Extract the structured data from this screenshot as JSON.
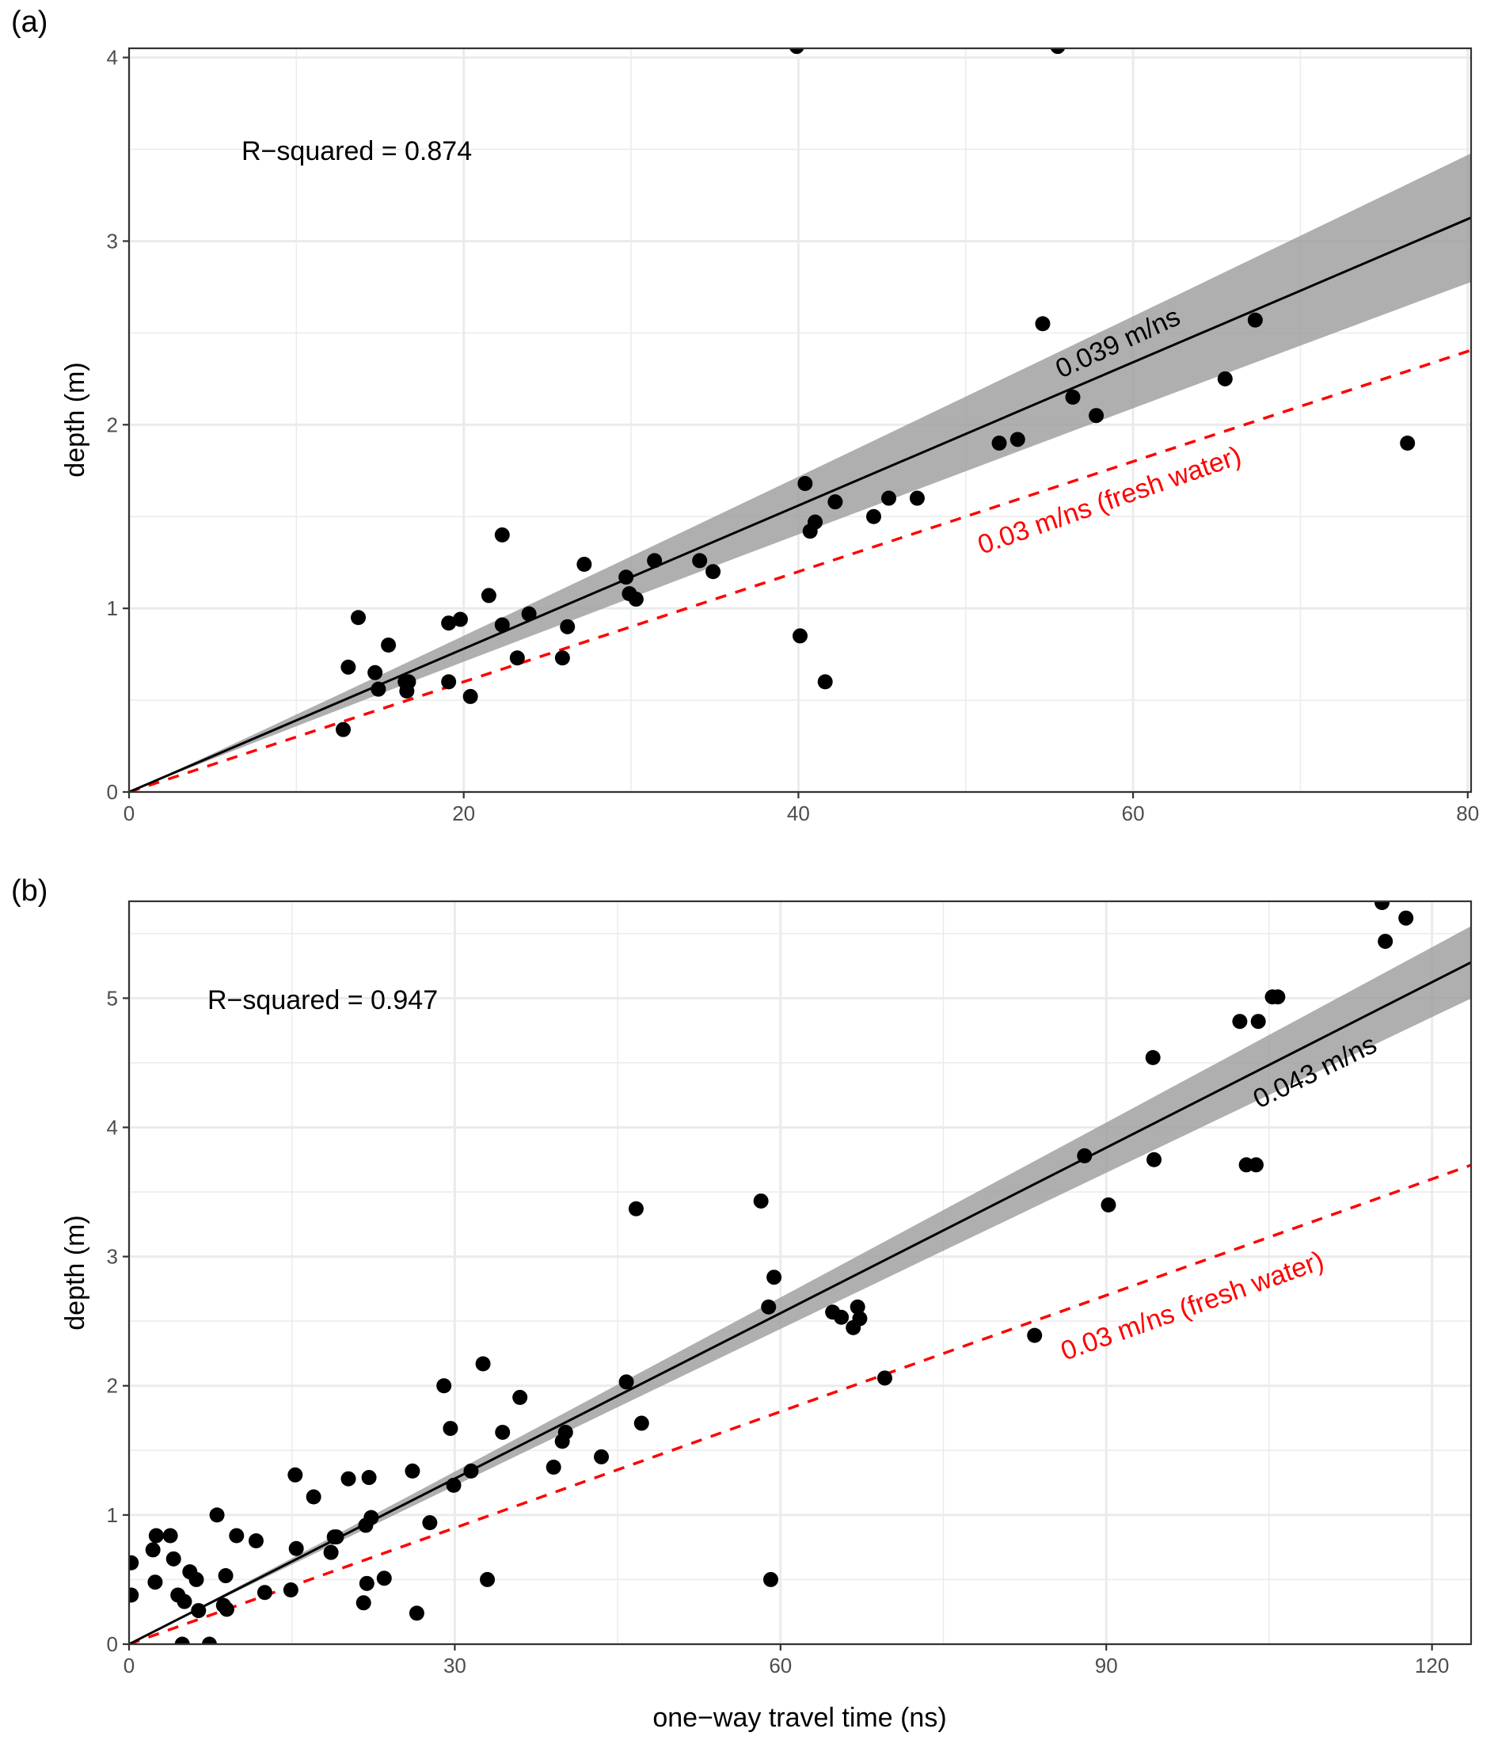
{
  "figure": {
    "panels": [
      "(a)",
      "(b)"
    ],
    "colors": {
      "points": "#000000",
      "fit_line": "#000000",
      "confidence_band": "#999999",
      "reference_line": "#ff0000",
      "grid": "#ebebeb",
      "tick_text": "#4d4d4d"
    }
  },
  "chart_data": [
    {
      "type": "scatter",
      "panel_label": "(a)",
      "title": "",
      "xlabel": "",
      "ylabel": "depth (m)",
      "xlim": [
        0,
        80.2
      ],
      "ylim": [
        0,
        4.05
      ],
      "xticks": [
        0,
        20,
        40,
        60,
        80
      ],
      "yticks": [
        0,
        1,
        2,
        3,
        4
      ],
      "xminor": [
        10,
        30,
        50,
        70
      ],
      "yminor": [
        0.5,
        1.5,
        2.5,
        3.5
      ],
      "grid": true,
      "annotations": {
        "r_squared": "R−squared = 0.874",
        "fit_label": "0.039 m/ns",
        "reference_label": "0.03 m/ns (fresh water)"
      },
      "fit": {
        "slope": 0.039,
        "intercept": 0,
        "band_half_width_at_xmax": 0.35
      },
      "reference": {
        "slope": 0.03,
        "intercept": 0,
        "style": "dashed"
      },
      "points": {
        "x": [
          12.8,
          13.1,
          13.7,
          14.7,
          14.9,
          15.5,
          16.5,
          16.7,
          16.6,
          19.1,
          19.1,
          19.8,
          20.4,
          21.5,
          22.3,
          22.3,
          23.2,
          23.9,
          25.9,
          26.2,
          27.2,
          29.7,
          29.9,
          30.3,
          31.4,
          34.1,
          34.9,
          39.9,
          40.1,
          40.4,
          40.7,
          41.0,
          41.6,
          42.2,
          44.5,
          45.4,
          47.1,
          52.0,
          53.1,
          54.6,
          55.5,
          56.4,
          57.8,
          65.5,
          67.3,
          76.4
        ],
        "y": [
          0.34,
          0.68,
          0.95,
          0.65,
          0.56,
          0.8,
          0.6,
          0.6,
          0.55,
          0.92,
          0.6,
          0.94,
          0.52,
          1.07,
          1.4,
          0.91,
          0.73,
          0.97,
          0.73,
          0.9,
          1.24,
          1.17,
          1.08,
          1.05,
          1.26,
          1.26,
          1.2,
          4.06,
          0.85,
          1.68,
          1.42,
          1.47,
          0.6,
          1.58,
          1.5,
          1.6,
          1.6,
          1.9,
          1.92,
          2.55,
          4.06,
          2.15,
          2.05,
          2.25,
          2.57,
          1.9
        ]
      }
    },
    {
      "type": "scatter",
      "panel_label": "(b)",
      "title": "",
      "xlabel": "one−way travel time (ns)",
      "ylabel": "depth (m)",
      "xlim": [
        0,
        123.6
      ],
      "ylim": [
        0,
        5.75
      ],
      "xticks": [
        0,
        30,
        60,
        90,
        120
      ],
      "yticks": [
        0,
        1,
        2,
        3,
        4,
        5
      ],
      "xminor": [
        15,
        45,
        75,
        105
      ],
      "yminor": [
        0.5,
        1.5,
        2.5,
        3.5,
        4.5,
        5.5
      ],
      "grid": true,
      "annotations": {
        "r_squared": "R−squared = 0.947",
        "fit_label": "0.043 m/ns",
        "reference_label": "0.03 m/ns (fresh water)"
      },
      "fit": {
        "slope": 0.0427,
        "intercept": 0,
        "band_half_width_at_xmax": 0.28
      },
      "reference": {
        "slope": 0.03,
        "intercept": 0,
        "style": "dashed"
      },
      "points": {
        "x": [
          0.2,
          0.2,
          2.2,
          2.5,
          2.4,
          3.8,
          4.1,
          4.5,
          4.9,
          5.1,
          5.6,
          6.2,
          6.4,
          7.4,
          8.1,
          8.7,
          8.9,
          9.0,
          9.9,
          11.7,
          12.5,
          14.9,
          15.3,
          15.4,
          17.0,
          18.6,
          18.9,
          19.1,
          20.2,
          21.6,
          21.8,
          21.9,
          22.1,
          22.3,
          23.5,
          26.1,
          26.5,
          27.7,
          29.0,
          29.6,
          29.9,
          31.5,
          32.6,
          33.0,
          34.4,
          36.0,
          39.1,
          39.9,
          40.2,
          43.5,
          45.8,
          46.7,
          47.2,
          58.2,
          58.9,
          59.1,
          59.4,
          64.8,
          65.6,
          66.7,
          67.1,
          67.3,
          69.6,
          83.4,
          88.0,
          90.2,
          94.3,
          94.4,
          102.3,
          102.9,
          103.8,
          104.0,
          105.3,
          105.8,
          115.4,
          115.7,
          117.6
        ],
        "y": [
          0.63,
          0.38,
          0.73,
          0.84,
          0.48,
          0.84,
          0.66,
          0.38,
          0.0,
          0.33,
          0.56,
          0.5,
          0.26,
          0.0,
          1.0,
          0.3,
          0.53,
          0.27,
          0.84,
          0.8,
          0.4,
          0.42,
          1.31,
          0.74,
          1.14,
          0.71,
          0.83,
          0.83,
          1.28,
          0.32,
          0.92,
          0.47,
          1.29,
          0.98,
          0.51,
          1.34,
          0.24,
          0.94,
          2.0,
          1.67,
          1.23,
          1.34,
          2.17,
          0.5,
          1.64,
          1.91,
          1.37,
          1.57,
          1.64,
          1.45,
          2.03,
          3.37,
          1.71,
          3.43,
          2.61,
          0.5,
          2.84,
          2.57,
          2.53,
          2.45,
          2.61,
          2.52,
          2.06,
          2.39,
          3.78,
          3.4,
          4.54,
          3.75,
          4.82,
          3.71,
          3.71,
          4.82,
          5.01,
          5.01,
          5.74,
          5.44,
          5.62
        ]
      }
    }
  ]
}
